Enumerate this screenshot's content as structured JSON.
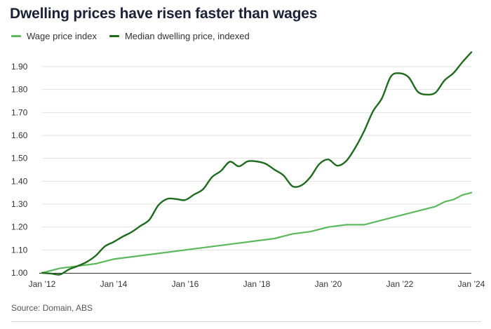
{
  "header": {
    "title": "Dwelling prices have risen faster than wages"
  },
  "footer": {
    "source": "Source: Domain, ABS"
  },
  "chart_data": {
    "type": "line",
    "title": "Dwelling prices have risen faster than wages",
    "xlabel": "",
    "ylabel": "",
    "xlim": [
      2012.0,
      2024.0
    ],
    "ylim": [
      1.0,
      1.9
    ],
    "grid": "horizontal",
    "legend_position": "top-left",
    "y_ticks": [
      1.0,
      1.1,
      1.2,
      1.3,
      1.4,
      1.5,
      1.6,
      1.7,
      1.8,
      1.9
    ],
    "y_tick_labels": [
      "1.00",
      "1.10",
      "1.20",
      "1.30",
      "1.40",
      "1.50",
      "1.60",
      "1.70",
      "1.80",
      "1.90"
    ],
    "x_ticks": [
      2012,
      2014,
      2016,
      2018,
      2020,
      2022,
      2024
    ],
    "x_tick_labels": [
      "Jan ’12",
      "Jan ’14",
      "Jan ’16",
      "Jan ’18",
      "Jan ’20",
      "Jan ’22",
      "Jan ’24"
    ],
    "series": [
      {
        "name": "Wage price index",
        "color": "#5cb85c",
        "x": [
          2012.0,
          2012.5,
          2013.0,
          2013.5,
          2014.0,
          2014.5,
          2015.0,
          2015.5,
          2016.0,
          2016.5,
          2017.0,
          2017.5,
          2018.0,
          2018.5,
          2019.0,
          2019.5,
          2020.0,
          2020.5,
          2021.0,
          2021.5,
          2022.0,
          2022.5,
          2023.0,
          2023.25,
          2023.5,
          2023.75,
          2024.0
        ],
        "values": [
          1.0,
          1.02,
          1.03,
          1.04,
          1.06,
          1.07,
          1.08,
          1.09,
          1.1,
          1.11,
          1.12,
          1.13,
          1.14,
          1.15,
          1.17,
          1.18,
          1.2,
          1.21,
          1.21,
          1.23,
          1.25,
          1.27,
          1.29,
          1.31,
          1.32,
          1.34,
          1.35
        ]
      },
      {
        "name": "Median dwelling price, indexed",
        "color": "#1e6b1e",
        "x": [
          2012.0,
          2012.25,
          2012.5,
          2012.75,
          2013.0,
          2013.25,
          2013.5,
          2013.75,
          2014.0,
          2014.25,
          2014.5,
          2014.75,
          2015.0,
          2015.25,
          2015.5,
          2015.75,
          2016.0,
          2016.25,
          2016.5,
          2016.75,
          2017.0,
          2017.25,
          2017.5,
          2017.75,
          2018.0,
          2018.25,
          2018.5,
          2018.75,
          2019.0,
          2019.25,
          2019.5,
          2019.75,
          2020.0,
          2020.25,
          2020.5,
          2020.75,
          2021.0,
          2021.25,
          2021.5,
          2021.75,
          2022.0,
          2022.25,
          2022.5,
          2022.75,
          2023.0,
          2023.25,
          2023.5,
          2023.75,
          2024.0
        ],
        "values": [
          1.0,
          0.997,
          0.993,
          1.015,
          1.03,
          1.048,
          1.075,
          1.115,
          1.135,
          1.158,
          1.178,
          1.205,
          1.232,
          1.295,
          1.323,
          1.322,
          1.318,
          1.342,
          1.365,
          1.418,
          1.445,
          1.485,
          1.465,
          1.487,
          1.486,
          1.476,
          1.45,
          1.425,
          1.378,
          1.382,
          1.418,
          1.475,
          1.495,
          1.468,
          1.488,
          1.545,
          1.618,
          1.705,
          1.762,
          1.857,
          1.871,
          1.853,
          1.791,
          1.778,
          1.787,
          1.84,
          1.872,
          1.92,
          1.963
        ]
      }
    ]
  }
}
